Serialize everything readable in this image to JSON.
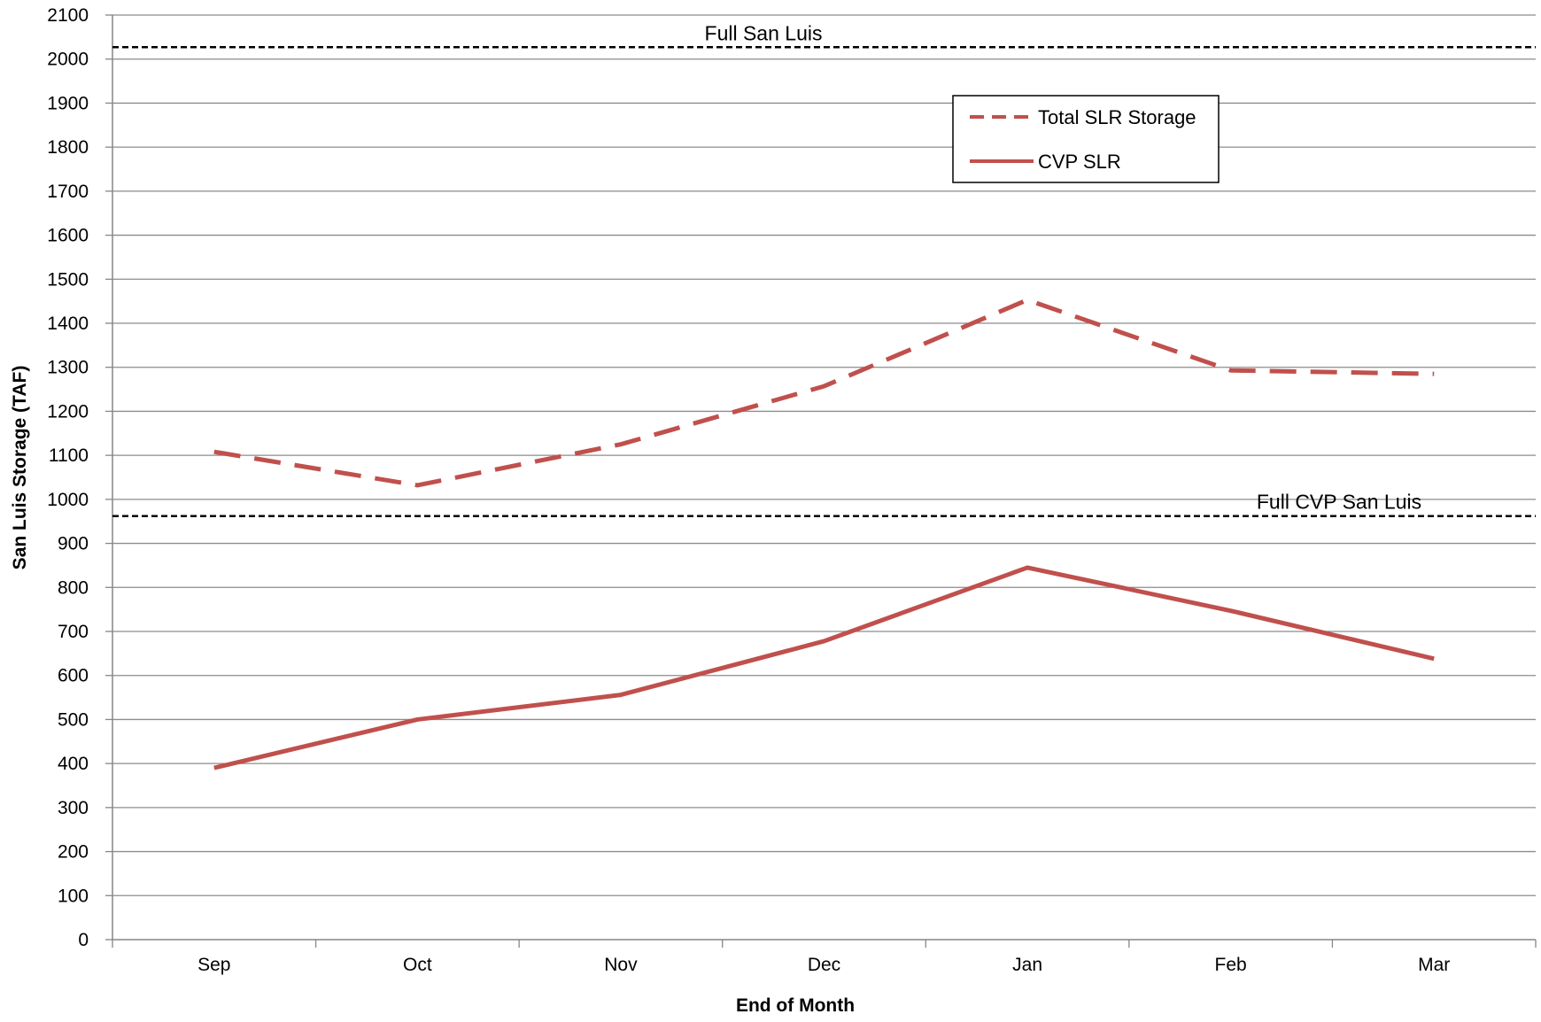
{
  "chart_data": {
    "type": "line",
    "categories": [
      "Sep",
      "Oct",
      "Nov",
      "Dec",
      "Jan",
      "Feb",
      "Mar"
    ],
    "series": [
      {
        "name": "Total SLR Storage",
        "values": [
          1108,
          1032,
          1125,
          1257,
          1453,
          1293,
          1285
        ],
        "color": "#C0504D",
        "style": "dashed"
      },
      {
        "name": "CVP SLR",
        "values": [
          390,
          500,
          556,
          678,
          845,
          747,
          638
        ],
        "color": "#C0504D",
        "style": "solid"
      }
    ],
    "reference_lines": [
      {
        "label": "Full  San Luis",
        "value": 2027,
        "color": "#000000",
        "style": "dashed"
      },
      {
        "label": "Full CVP San Luis",
        "value": 962,
        "color": "#000000",
        "style": "dashed"
      }
    ],
    "xlabel": "End of Month",
    "ylabel": "San Luis Storage (TAF)",
    "ylim": [
      0,
      2100
    ],
    "ytick_step": 100,
    "grid": true,
    "legend_position": "top-right"
  }
}
